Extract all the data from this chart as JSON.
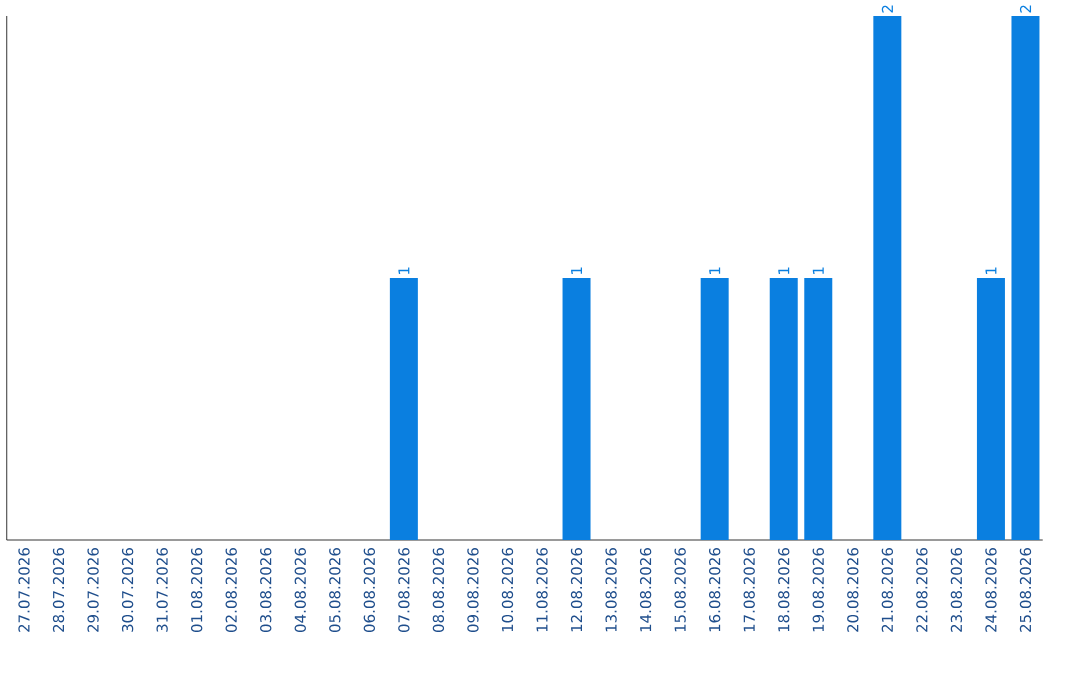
{
  "chart_data": {
    "type": "bar",
    "categories": [
      "27.07.2026",
      "28.07.2026",
      "29.07.2026",
      "30.07.2026",
      "31.07.2026",
      "01.08.2026",
      "02.08.2026",
      "03.08.2026",
      "04.08.2026",
      "05.08.2026",
      "06.08.2026",
      "07.08.2026",
      "08.08.2026",
      "09.08.2026",
      "10.08.2026",
      "11.08.2026",
      "12.08.2026",
      "13.08.2026",
      "14.08.2026",
      "15.08.2026",
      "16.08.2026",
      "17.08.2026",
      "18.08.2026",
      "19.08.2026",
      "20.08.2026",
      "21.08.2026",
      "22.08.2026",
      "23.08.2026",
      "24.08.2026",
      "25.08.2026"
    ],
    "values": [
      0,
      0,
      0,
      0,
      0,
      0,
      0,
      0,
      0,
      0,
      0,
      1,
      0,
      0,
      0,
      0,
      1,
      0,
      0,
      0,
      1,
      0,
      1,
      1,
      0,
      2,
      0,
      0,
      1,
      2
    ],
    "value_labels": [
      null,
      null,
      null,
      null,
      null,
      null,
      null,
      null,
      null,
      null,
      null,
      "1",
      null,
      null,
      null,
      null,
      "1",
      null,
      null,
      null,
      "1",
      null,
      "1",
      "1",
      null,
      "2",
      null,
      null,
      "1",
      "2"
    ],
    "color": "#0a7fe0"
  }
}
